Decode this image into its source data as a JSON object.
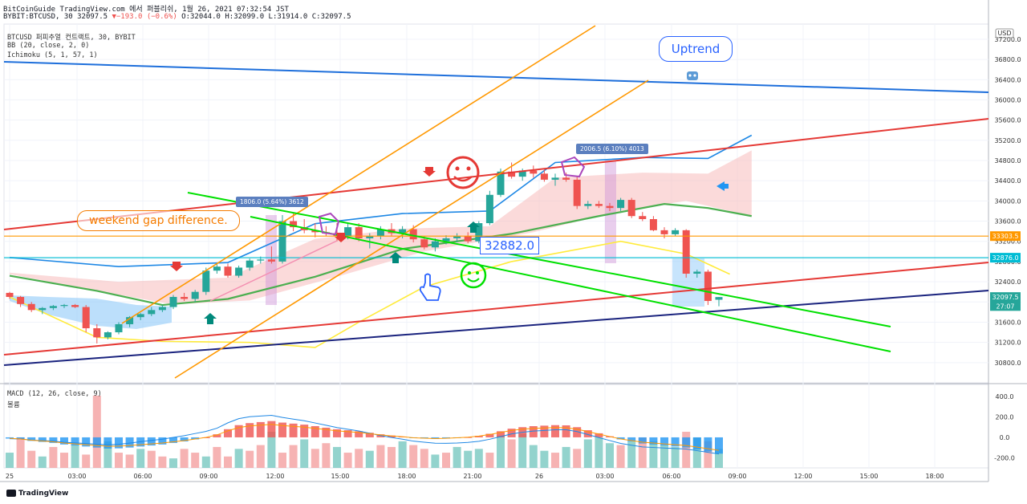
{
  "header": {
    "line1": "BitCoinGuide TradingView.com 에서 퍼블리쉬, 1월 26, 2021 07:32:54 JST",
    "symbol_line": "BYBIT:BTCUSD, 30 32097.5",
    "change": "−193.0 (−0.6%)",
    "ohlc": "O:32044.0 H:32099.0 L:31914.0 C:32097.5"
  },
  "indicators": {
    "title": "BTCUSD 퍼피추얼 컨트랙트, 30, BYBIT",
    "bb": "BB (20, close, 2, 0)",
    "ichimoku": "Ichimoku (5, 1, 57, 1)",
    "macd": "MACD (12, 26, close, 9)",
    "volume": "볼륨"
  },
  "annotations": {
    "uptrend": "Uptrend",
    "weekend_gap": "weekend gap difference.",
    "measure1": "1806.0 (5.64%) 3612",
    "measure2": "2006.5 (6.10%) 4013",
    "price_box": "32882.0"
  },
  "footer": {
    "brand": "TradingView"
  },
  "colors": {
    "up": "#26a69a",
    "down": "#ef5350",
    "bb": "#1e88e5",
    "ichimoku_cloud": "#f8bbbb",
    "lead_span": "#4caf50",
    "signal": "#ffeb3b",
    "orange": "#ff9800",
    "green_trend": "#00e000",
    "red_trend": "#e53935",
    "navy_trend": "#1a237e"
  },
  "chart_data": [
    {
      "type": "candlestick",
      "title": "BTCUSD 퍼피추얼 컨트랙트, 30, BYBIT",
      "currency": "USD",
      "ylim": [
        30400,
        37500
      ],
      "yticks": [
        30800,
        31200,
        31600,
        32000,
        32400,
        32800,
        33200,
        33600,
        34000,
        34400,
        34800,
        35200,
        35600,
        36000,
        36400,
        36800,
        37200
      ],
      "x_tick_labels": [
        "25",
        "03:00",
        "06:00",
        "09:00",
        "12:00",
        "15:00",
        "18:00",
        "21:00",
        "26",
        "03:00",
        "06:00",
        "09:00",
        "12:00",
        "15:00",
        "18:00"
      ],
      "price_labels": [
        {
          "text": "33303.5",
          "value": 33303.5,
          "color": "#ff9800"
        },
        {
          "text": "32876.0",
          "value": 32876.0,
          "color": "#00bcd4"
        },
        {
          "text": "32097.5",
          "value": 32097.5,
          "color": "#26a69a"
        },
        {
          "text": "27:07",
          "value": 31920,
          "color": "#26a69a"
        }
      ],
      "candles": [
        {
          "o": 32180,
          "h": 32200,
          "l": 32060,
          "c": 32100
        },
        {
          "o": 32100,
          "h": 32120,
          "l": 31900,
          "c": 31960
        },
        {
          "o": 31960,
          "h": 32000,
          "l": 31800,
          "c": 31840
        },
        {
          "o": 31840,
          "h": 31900,
          "l": 31760,
          "c": 31880
        },
        {
          "o": 31880,
          "h": 31940,
          "l": 31840,
          "c": 31920
        },
        {
          "o": 31920,
          "h": 31960,
          "l": 31880,
          "c": 31940
        },
        {
          "o": 31940,
          "h": 31960,
          "l": 31880,
          "c": 31900
        },
        {
          "o": 31900,
          "h": 31940,
          "l": 31400,
          "c": 31480
        },
        {
          "o": 31480,
          "h": 31560,
          "l": 31180,
          "c": 31300
        },
        {
          "o": 31300,
          "h": 31420,
          "l": 31260,
          "c": 31400
        },
        {
          "o": 31400,
          "h": 31600,
          "l": 31360,
          "c": 31560
        },
        {
          "o": 31560,
          "h": 31720,
          "l": 31500,
          "c": 31700
        },
        {
          "o": 31700,
          "h": 31780,
          "l": 31640,
          "c": 31760
        },
        {
          "o": 31760,
          "h": 31900,
          "l": 31720,
          "c": 31840
        },
        {
          "o": 31840,
          "h": 31940,
          "l": 31800,
          "c": 31900
        },
        {
          "o": 31900,
          "h": 32140,
          "l": 31860,
          "c": 32100
        },
        {
          "o": 32100,
          "h": 32180,
          "l": 32020,
          "c": 32060
        },
        {
          "o": 32060,
          "h": 32240,
          "l": 32000,
          "c": 32200
        },
        {
          "o": 32200,
          "h": 32680,
          "l": 32140,
          "c": 32620
        },
        {
          "o": 32620,
          "h": 32760,
          "l": 32560,
          "c": 32700
        },
        {
          "o": 32700,
          "h": 32760,
          "l": 32480,
          "c": 32520
        },
        {
          "o": 32520,
          "h": 32720,
          "l": 32480,
          "c": 32680
        },
        {
          "o": 32680,
          "h": 32860,
          "l": 32620,
          "c": 32820
        },
        {
          "o": 32820,
          "h": 32900,
          "l": 32760,
          "c": 32840
        },
        {
          "o": 32840,
          "h": 33100,
          "l": 32760,
          "c": 32800
        },
        {
          "o": 32800,
          "h": 33720,
          "l": 32760,
          "c": 33600
        },
        {
          "o": 33600,
          "h": 33760,
          "l": 33400,
          "c": 33480
        },
        {
          "o": 33480,
          "h": 33640,
          "l": 33360,
          "c": 33420
        },
        {
          "o": 33420,
          "h": 33560,
          "l": 33280,
          "c": 33380
        },
        {
          "o": 33380,
          "h": 33500,
          "l": 33300,
          "c": 33360
        },
        {
          "o": 33360,
          "h": 33560,
          "l": 33200,
          "c": 33300
        },
        {
          "o": 33300,
          "h": 33560,
          "l": 33240,
          "c": 33480
        },
        {
          "o": 33480,
          "h": 33560,
          "l": 33200,
          "c": 33260
        },
        {
          "o": 33260,
          "h": 33360,
          "l": 33060,
          "c": 33300
        },
        {
          "o": 33300,
          "h": 33500,
          "l": 33240,
          "c": 33440
        },
        {
          "o": 33440,
          "h": 33560,
          "l": 33300,
          "c": 33360
        },
        {
          "o": 33360,
          "h": 33500,
          "l": 33260,
          "c": 33440
        },
        {
          "o": 33440,
          "h": 33520,
          "l": 33180,
          "c": 33240
        },
        {
          "o": 33240,
          "h": 33300,
          "l": 33040,
          "c": 33080
        },
        {
          "o": 33080,
          "h": 33260,
          "l": 33000,
          "c": 33200
        },
        {
          "o": 33200,
          "h": 33320,
          "l": 33140,
          "c": 33260
        },
        {
          "o": 33260,
          "h": 33360,
          "l": 33180,
          "c": 33300
        },
        {
          "o": 33300,
          "h": 33380,
          "l": 33160,
          "c": 33200
        },
        {
          "o": 33200,
          "h": 33600,
          "l": 33160,
          "c": 33560
        },
        {
          "o": 33560,
          "h": 34200,
          "l": 33520,
          "c": 34120
        },
        {
          "o": 34120,
          "h": 34640,
          "l": 34080,
          "c": 34580
        },
        {
          "o": 34580,
          "h": 34760,
          "l": 34440,
          "c": 34480
        },
        {
          "o": 34480,
          "h": 34640,
          "l": 34400,
          "c": 34600
        },
        {
          "o": 34600,
          "h": 34700,
          "l": 34460,
          "c": 34540
        },
        {
          "o": 34540,
          "h": 34620,
          "l": 34380,
          "c": 34420
        },
        {
          "o": 34420,
          "h": 34540,
          "l": 34300,
          "c": 34460
        },
        {
          "o": 34460,
          "h": 34560,
          "l": 34380,
          "c": 34420
        },
        {
          "o": 34420,
          "h": 34480,
          "l": 33840,
          "c": 33900
        },
        {
          "o": 33900,
          "h": 34000,
          "l": 33840,
          "c": 33940
        },
        {
          "o": 33940,
          "h": 34000,
          "l": 33860,
          "c": 33900
        },
        {
          "o": 33900,
          "h": 33960,
          "l": 33800,
          "c": 33860
        },
        {
          "o": 33860,
          "h": 34060,
          "l": 33800,
          "c": 34020
        },
        {
          "o": 34020,
          "h": 34060,
          "l": 33660,
          "c": 33700
        },
        {
          "o": 33700,
          "h": 33780,
          "l": 33600,
          "c": 33640
        },
        {
          "o": 33640,
          "h": 33700,
          "l": 33400,
          "c": 33420
        },
        {
          "o": 33420,
          "h": 33480,
          "l": 33260,
          "c": 33340
        },
        {
          "o": 33340,
          "h": 33460,
          "l": 33300,
          "c": 33420
        },
        {
          "o": 33420,
          "h": 33440,
          "l": 32480,
          "c": 32560
        },
        {
          "o": 32560,
          "h": 32640,
          "l": 32480,
          "c": 32600
        },
        {
          "o": 32600,
          "h": 32640,
          "l": 31940,
          "c": 32020
        },
        {
          "o": 32044,
          "h": 32099,
          "l": 31914,
          "c": 32097.5
        }
      ],
      "overlays": {
        "bb_upper": [
          [
            0,
            32880
          ],
          [
            10,
            32700
          ],
          [
            20,
            32780
          ],
          [
            28,
            33550
          ],
          [
            36,
            33750
          ],
          [
            44,
            33800
          ],
          [
            50,
            34760
          ],
          [
            58,
            34860
          ],
          [
            64,
            34840
          ],
          [
            68,
            35300
          ]
        ],
        "bb_basis": [
          [
            0,
            32520
          ],
          [
            8,
            32220
          ],
          [
            14,
            31940
          ],
          [
            20,
            32060
          ],
          [
            28,
            32500
          ],
          [
            36,
            33050
          ],
          [
            46,
            33350
          ],
          [
            54,
            33700
          ],
          [
            60,
            33940
          ],
          [
            64,
            33860
          ],
          [
            68,
            33700
          ]
        ],
        "bb_lower": [
          [
            0,
            32100
          ],
          [
            8,
            31300
          ],
          [
            14,
            31220
          ],
          [
            22,
            31200
          ],
          [
            28,
            31100
          ],
          [
            32,
            31600
          ],
          [
            38,
            32300
          ],
          [
            46,
            32800
          ],
          [
            56,
            33200
          ],
          [
            62,
            32950
          ],
          [
            66,
            32550
          ]
        ],
        "lead_span_b": [
          [
            0,
            32550
          ],
          [
            8,
            32220
          ],
          [
            15,
            31950
          ],
          [
            22,
            32030
          ],
          [
            30,
            32500
          ],
          [
            38,
            33000
          ],
          [
            48,
            33380
          ],
          [
            56,
            33800
          ],
          [
            62,
            34000
          ],
          [
            68,
            33700
          ]
        ]
      },
      "levels": [
        33303.5,
        32876.0
      ]
    },
    {
      "type": "bar",
      "title": "MACD (12, 26, close, 9)",
      "ylim": [
        -300,
        520
      ],
      "yticks": [
        -200,
        0,
        200,
        400
      ],
      "volume_bars": [
        40,
        80,
        45,
        30,
        55,
        40,
        60,
        35,
        190,
        70,
        40,
        35,
        50,
        45,
        30,
        25,
        50,
        40,
        30,
        55,
        30,
        50,
        45,
        60,
        95,
        40,
        60,
        75,
        50,
        65,
        55,
        40,
        50,
        45,
        60,
        55,
        70,
        60,
        50,
        35,
        40,
        55,
        45,
        50,
        40,
        85,
        75,
        90,
        60,
        45,
        40,
        55,
        50,
        75,
        80,
        65,
        60,
        70,
        80,
        70,
        60,
        55,
        95,
        80,
        70,
        50
      ],
      "macd_hist": [
        -12,
        -20,
        -35,
        -45,
        -55,
        -70,
        -80,
        -90,
        -100,
        -110,
        -108,
        -100,
        -90,
        -80,
        -70,
        -55,
        -40,
        -20,
        0,
        30,
        80,
        120,
        140,
        150,
        160,
        145,
        135,
        125,
        110,
        95,
        80,
        70,
        60,
        45,
        30,
        18,
        8,
        -5,
        -10,
        -15,
        -12,
        -6,
        2,
        15,
        35,
        60,
        85,
        100,
        110,
        115,
        120,
        118,
        100,
        70,
        40,
        10,
        -20,
        -40,
        -60,
        -70,
        -80,
        -90,
        -100,
        -120,
        -140,
        -160
      ]
    }
  ]
}
